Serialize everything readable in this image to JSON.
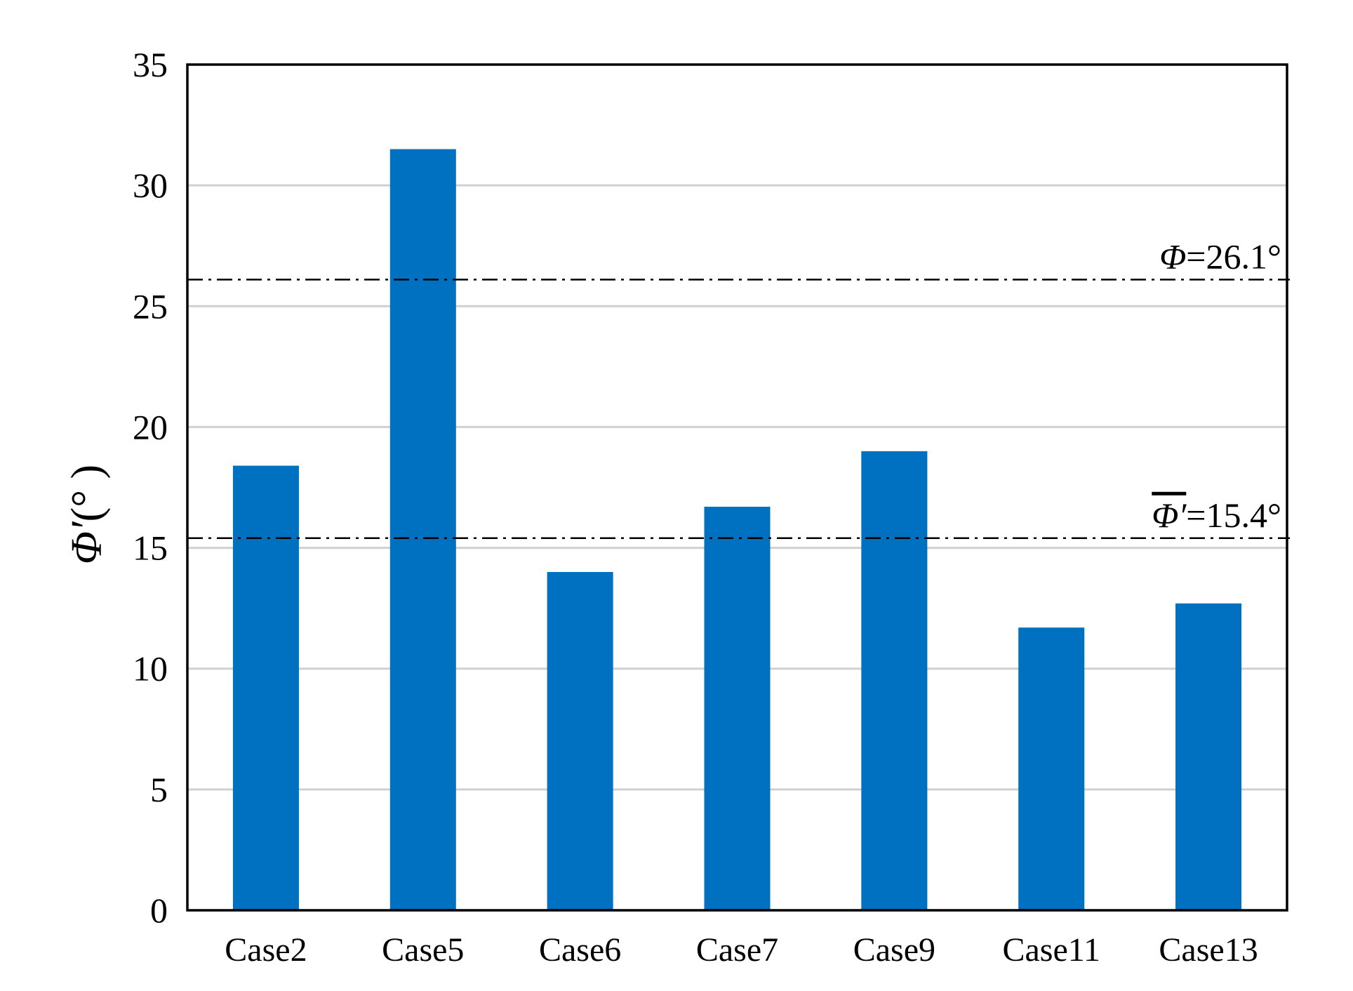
{
  "chart_data": {
    "type": "bar",
    "categories": [
      "Case2",
      "Case5",
      "Case6",
      "Case7",
      "Case9",
      "Case11",
      "Case13"
    ],
    "values": [
      18.4,
      31.5,
      14.0,
      16.7,
      19.0,
      11.7,
      12.7
    ],
    "color": "#0070c0",
    "ylim": [
      0,
      35
    ],
    "yticks": [
      0,
      5,
      10,
      15,
      20,
      25,
      30,
      35
    ],
    "grid": true,
    "y_label_symbol": "Φ′",
    "y_label_unit": "(°  )",
    "reference_lines": [
      {
        "symbol": "Φ",
        "text": "=26.1°",
        "value": 26.1,
        "overline": false
      },
      {
        "symbol": "Φ′",
        "text": "=15.4°",
        "value": 15.4,
        "overline": true
      }
    ]
  }
}
